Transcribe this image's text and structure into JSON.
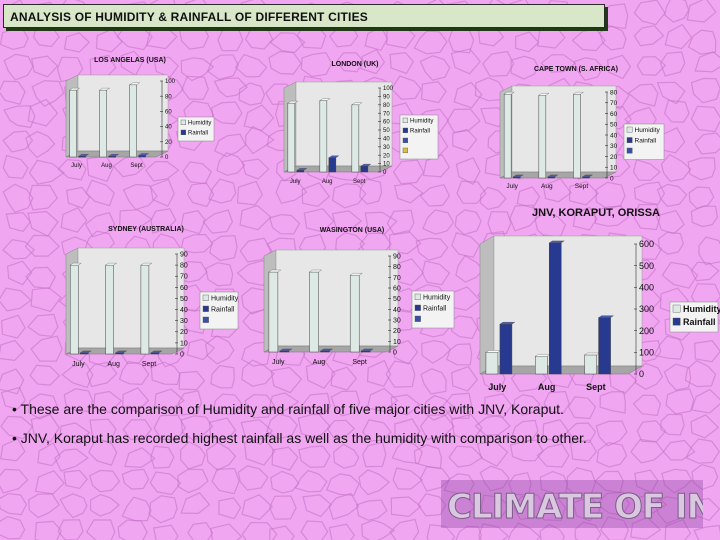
{
  "page_title": "ANALYSIS OF HUMIDITY & RAINFALL OF DIFFERENT CITIES",
  "colors": {
    "background": "#f0a6f0",
    "texture": "#c56fc7",
    "humidity": "#dde9e4",
    "rainfall": "#283a8f",
    "axis_wall": "#a6a6a6"
  },
  "bullets": [
    "• These are the comparison of Humidity and rainfall of five major cities with JNV, Koraput.",
    "• JNV, Koraput has recorded highest rainfall as well as the humidity with comparison to other."
  ],
  "banner": {
    "text": "CLIMATE OF INDIA"
  },
  "chart_data": [
    {
      "type": "bar",
      "title": "LOS ANGELAS (USA)",
      "categories": [
        "July",
        "Aug",
        "Sept"
      ],
      "yticks": [
        "100",
        "80",
        "60",
        "40",
        "20",
        "0"
      ],
      "ylim": [
        0,
        100
      ],
      "legend": [
        "Humidity",
        "Rainfall"
      ],
      "series": [
        {
          "name": "Humidity",
          "values": [
            88,
            88,
            95
          ]
        },
        {
          "name": "Rainfall",
          "values": [
            1,
            1,
            2
          ]
        }
      ]
    },
    {
      "type": "bar",
      "title": "LONDON (UK)",
      "categories": [
        "July",
        "Aug",
        "Sept"
      ],
      "yticks": [
        "100",
        "90",
        "80",
        "70",
        "60",
        "50",
        "40",
        "30",
        "20",
        "10",
        "0"
      ],
      "ylim": [
        0,
        100
      ],
      "legend": [
        "Humidity",
        "Rainfall",
        "",
        ""
      ],
      "series": [
        {
          "name": "Humidity",
          "values": [
            82,
            85,
            80
          ]
        },
        {
          "name": "Rainfall",
          "values": [
            2,
            17,
            7
          ]
        }
      ]
    },
    {
      "type": "bar",
      "title": "CAPE TOWN (S. AFRICA)",
      "categories": [
        "July",
        "Aug",
        "Sept"
      ],
      "yticks": [
        "80",
        "70",
        "60",
        "50",
        "40",
        "30",
        "20",
        "10",
        "0"
      ],
      "ylim": [
        0,
        80
      ],
      "legend": [
        "Humidity",
        "Rainfall",
        ""
      ],
      "series": [
        {
          "name": "Humidity",
          "values": [
            78,
            77,
            78
          ]
        },
        {
          "name": "Rainfall",
          "values": [
            1,
            1,
            1
          ]
        }
      ]
    },
    {
      "type": "bar",
      "title": "SYDNEY (AUSTRALIA)",
      "categories": [
        "July",
        "Aug",
        "Sept"
      ],
      "yticks": [
        "90",
        "80",
        "70",
        "60",
        "50",
        "40",
        "30",
        "20",
        "10",
        "0"
      ],
      "ylim": [
        0,
        90
      ],
      "legend": [
        "Humidity",
        "Rainfall",
        ""
      ],
      "series": [
        {
          "name": "Humidity",
          "values": [
            80,
            80,
            80
          ]
        },
        {
          "name": "Rainfall",
          "values": [
            1,
            1,
            1
          ]
        }
      ]
    },
    {
      "type": "bar",
      "title": "WASINGTON (USA)",
      "categories": [
        "July",
        "Aug",
        "Sept"
      ],
      "yticks": [
        "90",
        "80",
        "70",
        "60",
        "50",
        "40",
        "30",
        "20",
        "10",
        "0"
      ],
      "ylim": [
        0,
        90
      ],
      "legend": [
        "Humidity",
        "Rainfall",
        ""
      ],
      "series": [
        {
          "name": "Humidity",
          "values": [
            75,
            75,
            72
          ]
        },
        {
          "name": "Rainfall",
          "values": [
            1,
            1,
            1
          ]
        }
      ]
    },
    {
      "type": "bar",
      "title": "JNV, KORAPUT, ORISSA",
      "categories": [
        "July",
        "Aug",
        "Sept"
      ],
      "yticks": [
        "600",
        "500",
        "400",
        "300",
        "200",
        "100",
        "0"
      ],
      "ylim": [
        0,
        600
      ],
      "legend": [
        "Humidity",
        "Rainfall"
      ],
      "series": [
        {
          "name": "Humidity",
          "values": [
            100,
            82,
            88
          ]
        },
        {
          "name": "Rainfall",
          "values": [
            230,
            605,
            260
          ]
        }
      ]
    }
  ]
}
